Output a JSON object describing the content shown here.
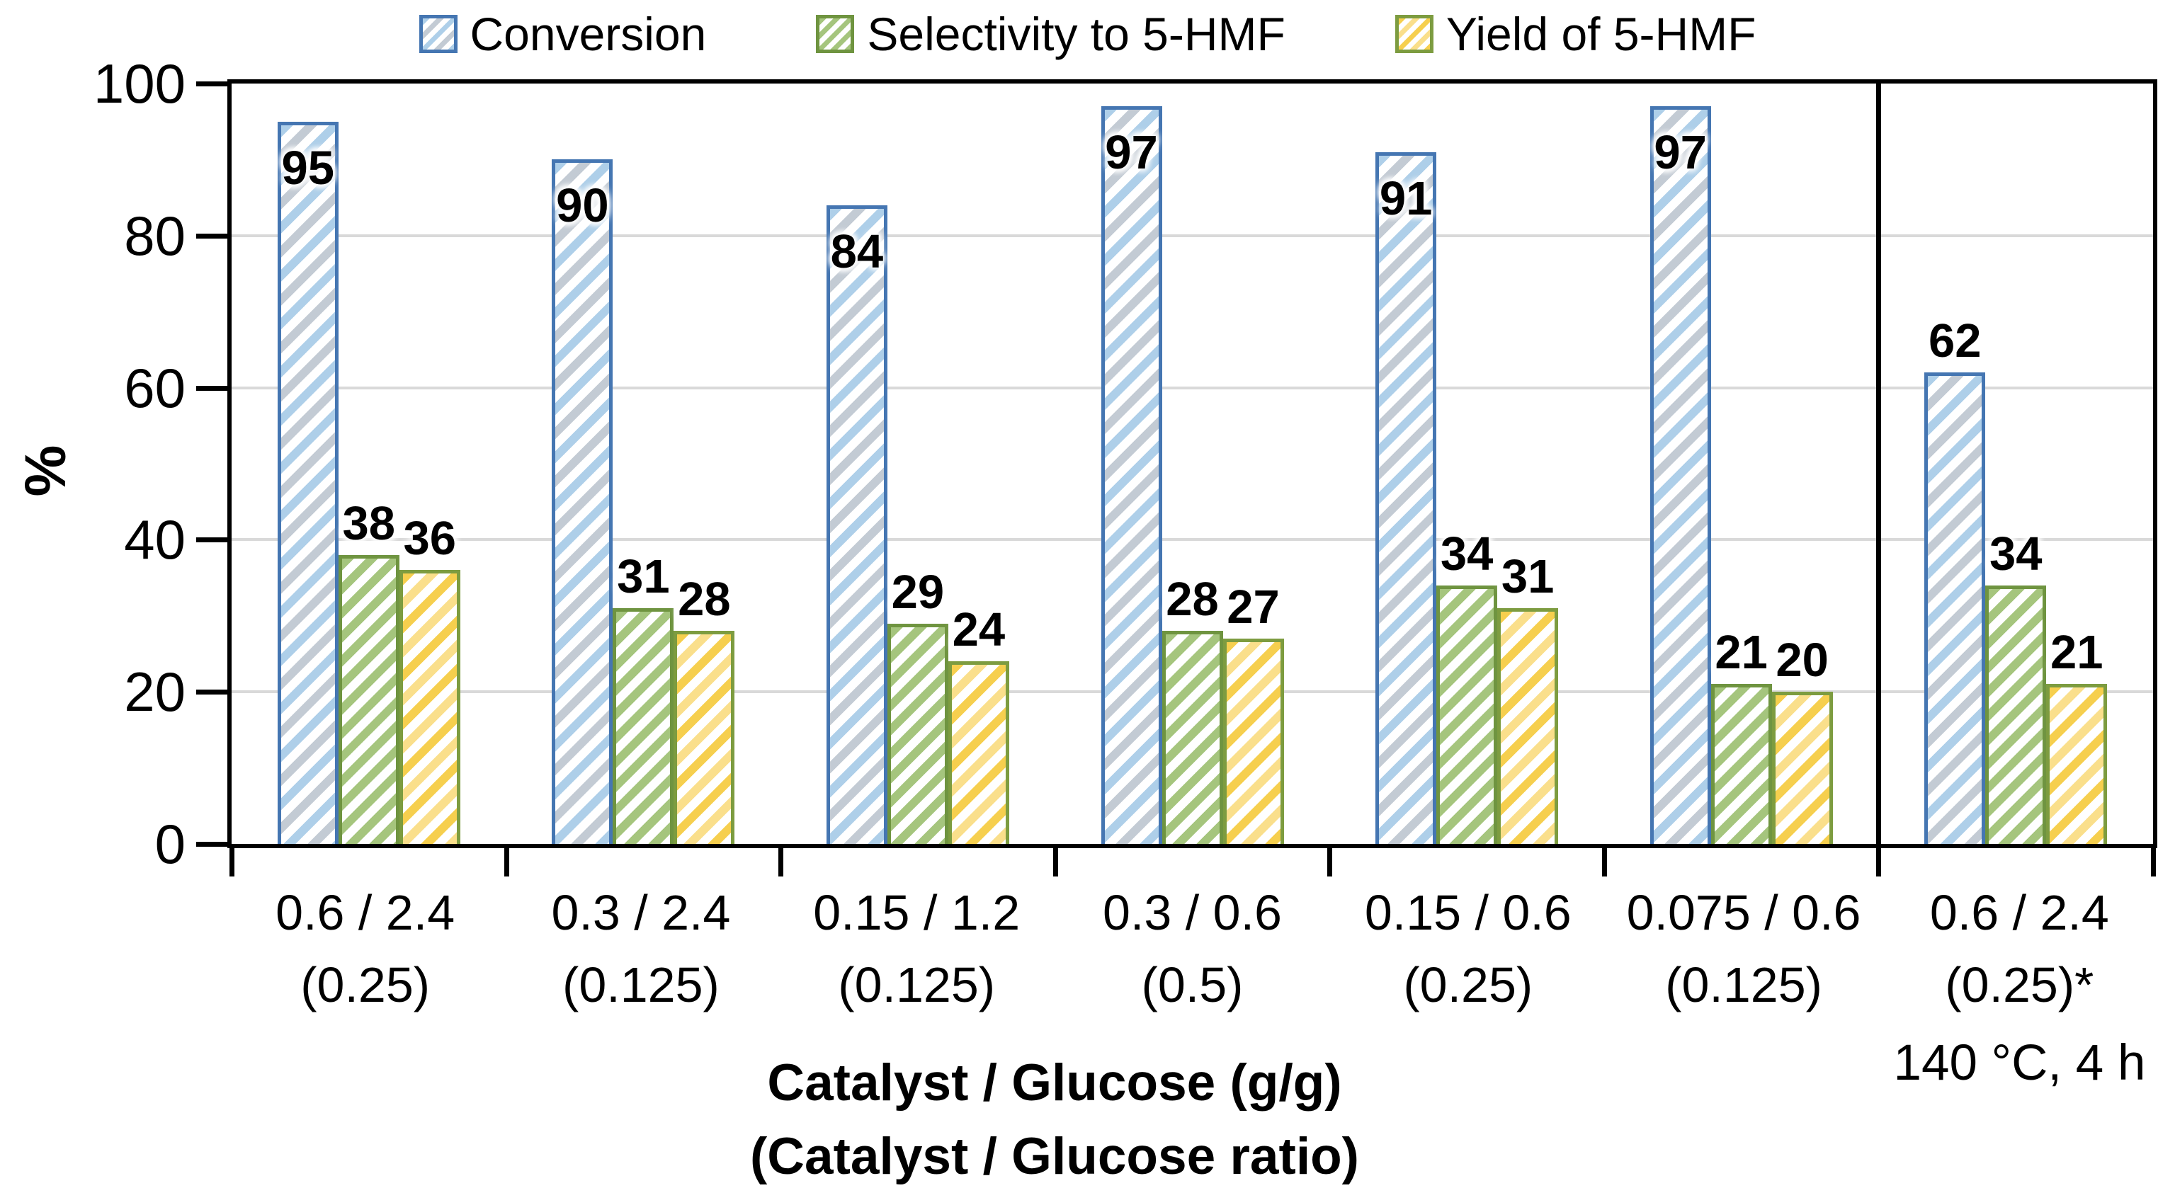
{
  "legend": {
    "items": [
      {
        "label": "Conversion"
      },
      {
        "label": "Selectivity to 5-HMF"
      },
      {
        "label": "Yield of 5-HMF"
      }
    ]
  },
  "colors": {
    "series": [
      {
        "border": "#4576b2",
        "stripe1": "#aecfe9",
        "stripe2": "#c3cbd4"
      },
      {
        "border": "#6f9440",
        "stripe1": "#a5c57d",
        "stripe2": "#a5c57d"
      },
      {
        "border": "#7d9c40",
        "stripe1": "#f6cf4e",
        "stripe2": "#fadf8b"
      }
    ],
    "gridline": "#d9d9d9",
    "axis": "#000000"
  },
  "chart_data": {
    "type": "bar",
    "title": "",
    "ylabel": "%",
    "ylim": [
      0,
      100
    ],
    "yticks": [
      0,
      20,
      40,
      60,
      80,
      100
    ],
    "grid": true,
    "legend_position": "top",
    "categories": [
      {
        "line1": "0.6 / 2.4",
        "line2": "(0.25)"
      },
      {
        "line1": "0.3 / 2.4",
        "line2": "(0.125)"
      },
      {
        "line1": "0.15 / 1.2",
        "line2": "(0.125)"
      },
      {
        "line1": "0.3 / 0.6",
        "line2": "(0.5)"
      },
      {
        "line1": "0.15 / 0.6",
        "line2": "(0.25)"
      },
      {
        "line1": "0.075 / 0.6",
        "line2": "(0.125)"
      },
      {
        "line1": "0.6 / 2.4",
        "line2": "(0.25)*"
      }
    ],
    "series": [
      {
        "name": "Conversion",
        "values": [
          95,
          90,
          84,
          97,
          91,
          97,
          62
        ]
      },
      {
        "name": "Selectivity to 5-HMF",
        "values": [
          38,
          31,
          29,
          28,
          34,
          21,
          34
        ]
      },
      {
        "name": "Yield of 5-HMF",
        "values": [
          36,
          28,
          24,
          27,
          31,
          20,
          21
        ]
      }
    ],
    "separator_after_category_index": 5,
    "xlabel_line1": "Catalyst / Glucose (g/g)",
    "xlabel_line2": "(Catalyst / Glucose ratio)",
    "last_group_note": "140 °C, 4 h"
  }
}
